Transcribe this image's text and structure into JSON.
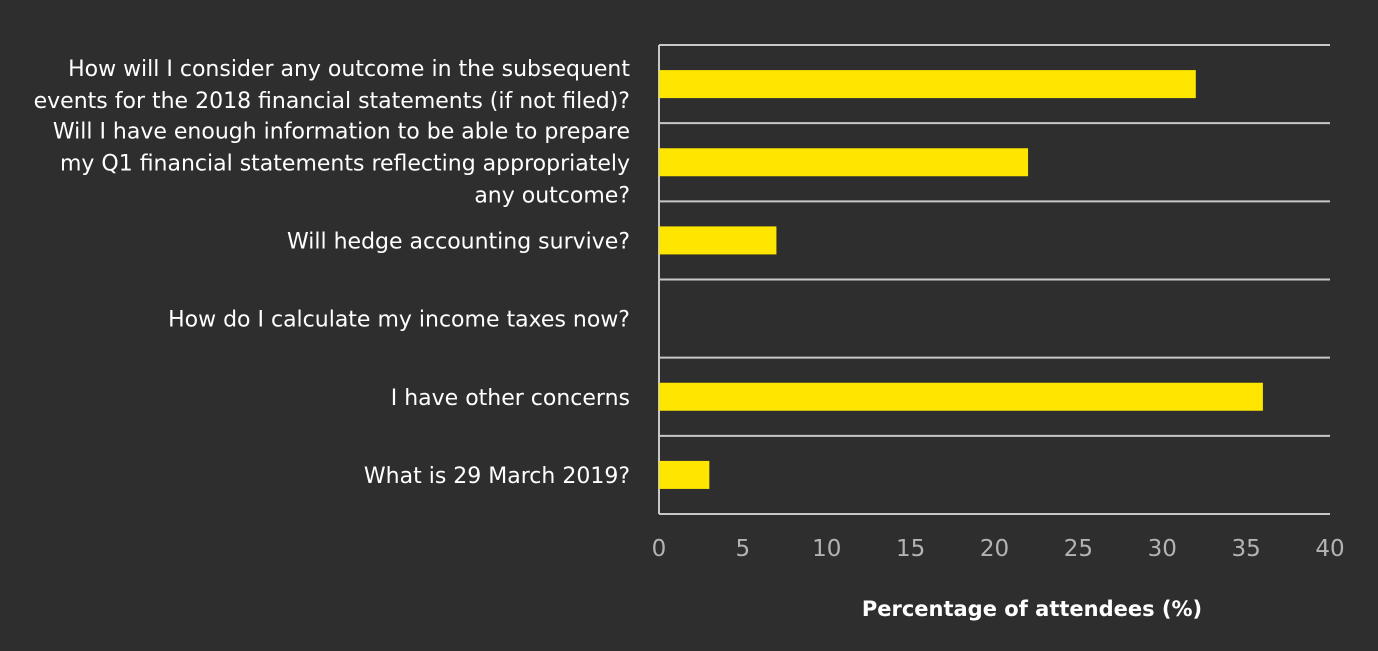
{
  "chart_data": {
    "type": "bar",
    "orientation": "horizontal",
    "categories": [
      [
        "How will I consider any outcome in the subsequent",
        "events for the 2018 financial statements (if not filed)?"
      ],
      [
        "Will I have enough information to be able to prepare",
        "my Q1 financial statements reflecting appropriately",
        "any outcome?"
      ],
      [
        "Will hedge accounting survive?"
      ],
      [
        "How do I calculate my income taxes now?"
      ],
      [
        "I have other concerns"
      ],
      [
        "What is 29 March 2019?"
      ]
    ],
    "values": [
      32,
      22,
      7,
      0,
      36,
      3
    ],
    "xlim": [
      0,
      40
    ],
    "xticks": [
      "0",
      "5",
      "10",
      "15",
      "20",
      "25",
      "30",
      "35",
      "40"
    ],
    "xlabel": "Percentage of attendees (%)",
    "ylabel": "",
    "title": "",
    "grid": true,
    "colors": {
      "background": "#2e2e2e",
      "bar": "#ffe600",
      "grid": "#c8c8c8",
      "text": "#ffffff",
      "tick_text": "#b3b3b3"
    }
  }
}
